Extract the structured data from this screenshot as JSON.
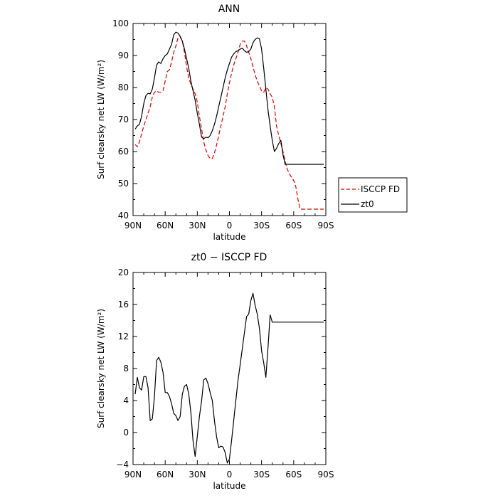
{
  "chart_data": [
    {
      "type": "line",
      "title": "ANN",
      "xlabel": "latitude",
      "ylabel": "Surf clearsky net LW (W/m²)",
      "xlim": [
        90,
        -90
      ],
      "ylim": [
        40,
        100
      ],
      "xticks": [
        90,
        60,
        30,
        0,
        -30,
        -60,
        -90
      ],
      "xtick_labels": [
        "90N",
        "60N",
        "30N",
        "0",
        "30S",
        "60S",
        "90S"
      ],
      "yticks": [
        40,
        50,
        60,
        70,
        80,
        90,
        100
      ],
      "ytick_labels": [
        "40",
        "50",
        "60",
        "70",
        "80",
        "90",
        "100"
      ],
      "legend_position": "right",
      "series": [
        {
          "name": "ISCCP FD",
          "color": "#e00000",
          "dash": "dashed",
          "x": [
            88,
            86,
            84,
            82,
            80,
            78,
            76,
            74,
            72,
            70,
            68,
            66,
            64,
            62,
            60,
            58,
            56,
            54,
            52,
            50,
            48,
            46,
            44,
            42,
            40,
            38,
            36,
            34,
            32,
            30,
            28,
            26,
            24,
            22,
            20,
            18,
            16,
            14,
            12,
            10,
            8,
            6,
            4,
            2,
            0,
            -2,
            -4,
            -6,
            -8,
            -10,
            -12,
            -14,
            -16,
            -18,
            -20,
            -22,
            -24,
            -26,
            -28,
            -30,
            -32,
            -34,
            -36,
            -38,
            -40,
            -42,
            -44,
            -46,
            -48,
            -50,
            -52,
            -54,
            -56,
            -58,
            -60,
            -62,
            -64,
            -66,
            -68,
            -70,
            -72,
            -74,
            -76,
            -78,
            -80,
            -82,
            -84,
            -86,
            -88
          ],
          "y": [
            62.2,
            61.5,
            63.0,
            65.5,
            68.0,
            70.0,
            72.0,
            74.0,
            77.0,
            78.5,
            79.0,
            78.5,
            78.5,
            79.0,
            82.0,
            85.0,
            85.5,
            88.0,
            91.0,
            93.0,
            95.5,
            95.8,
            94.5,
            91.0,
            86.5,
            83.0,
            81.0,
            79.5,
            78.0,
            75.5,
            71.0,
            67.0,
            63.0,
            60.5,
            58.8,
            57.8,
            57.8,
            59.5,
            62.0,
            65.0,
            68.0,
            71.0,
            74.0,
            78.0,
            81.5,
            84.5,
            87.0,
            89.0,
            91.0,
            93.5,
            94.5,
            94.5,
            93.0,
            91.0,
            89.0,
            86.5,
            84.0,
            82.0,
            80.5,
            79.0,
            78.5,
            80.0,
            79.5,
            78.0,
            77.0,
            74.0,
            68.0,
            65.0,
            62.5,
            60.0,
            57.0,
            54.5,
            53.0,
            52.0,
            51.0,
            49.0,
            45.0,
            42.0,
            42.0,
            42.0,
            42.0,
            42.0,
            42.0,
            42.0,
            42.0,
            42.0,
            42.0,
            42.0,
            42.0
          ]
        },
        {
          "name": "zt0",
          "color": "#000000",
          "dash": "solid",
          "x": [
            88,
            86,
            84,
            82,
            80,
            78,
            76,
            74,
            72,
            70,
            68,
            66,
            64,
            62,
            60,
            58,
            56,
            54,
            52,
            50,
            48,
            46,
            44,
            42,
            40,
            38,
            36,
            34,
            32,
            30,
            28,
            26,
            24,
            22,
            20,
            18,
            16,
            14,
            12,
            10,
            8,
            6,
            4,
            2,
            0,
            -2,
            -4,
            -6,
            -8,
            -10,
            -12,
            -14,
            -16,
            -18,
            -20,
            -22,
            -24,
            -26,
            -28,
            -30,
            -32,
            -34,
            -36,
            -38,
            -40,
            -42,
            -44,
            -46,
            -48,
            -50,
            -52,
            -54,
            -56,
            -58,
            -60,
            -62,
            -64,
            -66,
            -68,
            -70,
            -72,
            -74,
            -76,
            -78,
            -80,
            -82,
            -84,
            -86,
            -88
          ],
          "y": [
            67.0,
            68.0,
            68.5,
            71.0,
            75.0,
            77.5,
            78.2,
            78.0,
            79.5,
            83.0,
            87.0,
            88.0,
            87.5,
            89.0,
            90.0,
            90.5,
            92.0,
            93.5,
            96.5,
            97.3,
            97.0,
            96.0,
            94.5,
            92.0,
            89.0,
            86.0,
            82.0,
            79.0,
            76.0,
            72.0,
            68.5,
            64.5,
            64.0,
            64.5,
            64.3,
            65.0,
            66.5,
            68.5,
            71.0,
            74.0,
            77.0,
            80.0,
            83.0,
            85.5,
            87.5,
            89.5,
            90.5,
            91.2,
            91.5,
            92.0,
            92.3,
            91.5,
            91.0,
            91.2,
            92.0,
            94.0,
            95.0,
            95.5,
            95.2,
            92.0,
            86.0,
            79.5,
            73.0,
            68.0,
            63.5,
            60.0,
            61.0,
            62.5,
            63.5,
            59.0,
            56.0,
            56.0,
            56.0,
            56.0,
            56.0,
            56.0,
            56.0,
            56.0,
            56.0,
            56.0,
            56.0,
            56.0,
            56.0,
            56.0,
            56.0,
            56.0,
            56.0,
            56.0,
            56.0
          ]
        }
      ]
    },
    {
      "type": "line",
      "title": "zt0 − ISCCP FD",
      "xlabel": "latitude",
      "ylabel": "Surf clearsky net LW (W/m²)",
      "xlim": [
        90,
        -90
      ],
      "ylim": [
        -4,
        20
      ],
      "xticks": [
        90,
        60,
        30,
        0,
        -30,
        -60,
        -90
      ],
      "xtick_labels": [
        "90N",
        "60N",
        "30N",
        "0",
        "30S",
        "60S",
        "90S"
      ],
      "yticks": [
        -4,
        0,
        4,
        8,
        12,
        16,
        20
      ],
      "ytick_labels": [
        "−4",
        "0",
        "4",
        "8",
        "12",
        "16",
        "20"
      ],
      "series": [
        {
          "name": "",
          "color": "#000000",
          "dash": "solid",
          "x": [
            88,
            86,
            84,
            82,
            80,
            78,
            76,
            74,
            72,
            70,
            68,
            66,
            64,
            62,
            60,
            58,
            56,
            54,
            52,
            50,
            48,
            46,
            44,
            42,
            40,
            38,
            36,
            34,
            32,
            30,
            28,
            26,
            24,
            22,
            20,
            18,
            16,
            14,
            12,
            10,
            8,
            6,
            4,
            2,
            0,
            -2,
            -4,
            -6,
            -8,
            -10,
            -12,
            -14,
            -16,
            -18,
            -20,
            -22,
            -24,
            -26,
            -28,
            -30,
            -32,
            -34,
            -36,
            -38,
            -40,
            -42,
            -44,
            -46,
            -48,
            -50,
            -52,
            -54,
            -56,
            -58,
            -60,
            -62,
            -64,
            -66,
            -68,
            -70,
            -72,
            -74,
            -76,
            -78,
            -80,
            -82,
            -84,
            -86,
            -88
          ],
          "y": [
            4.8,
            6.9,
            5.6,
            5.3,
            7.0,
            7.0,
            5.6,
            1.5,
            1.7,
            4.5,
            9.0,
            9.4,
            8.8,
            7.5,
            5.0,
            5.0,
            4.5,
            3.6,
            2.4,
            2.1,
            1.5,
            2.0,
            4.8,
            5.8,
            6.0,
            4.8,
            2.5,
            -1.0,
            -3.0,
            -0.5,
            2.0,
            4.0,
            6.6,
            6.8,
            6.1,
            5.0,
            4.0,
            1.5,
            -0.5,
            -1.9,
            -1.7,
            -1.8,
            -2.5,
            -3.8,
            -3.3,
            -1.0,
            1.5,
            4.0,
            6.5,
            8.5,
            10.5,
            12.5,
            14.5,
            14.8,
            16.5,
            17.4,
            15.9,
            14.8,
            13.0,
            10.2,
            8.7,
            6.9,
            10.6,
            14.7,
            13.8,
            13.8,
            13.8,
            13.8,
            13.8,
            13.8,
            13.8,
            13.8,
            13.8,
            13.8,
            13.8,
            13.8,
            13.8,
            13.8,
            13.8,
            13.8,
            13.8,
            13.8,
            13.8,
            13.8,
            13.8,
            13.8,
            13.8,
            13.8,
            13.8
          ]
        }
      ]
    }
  ]
}
